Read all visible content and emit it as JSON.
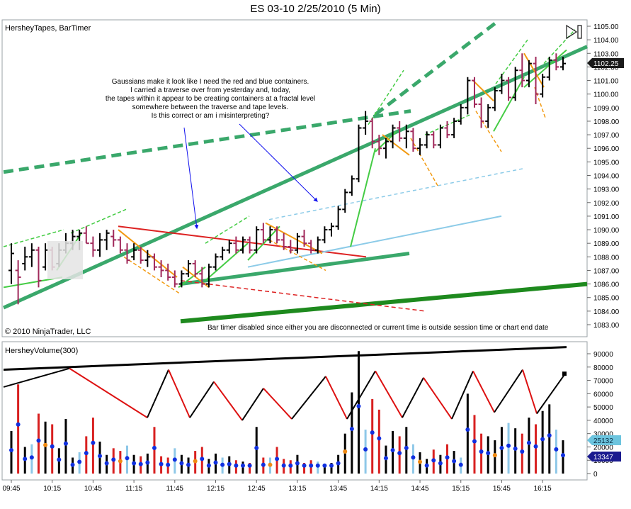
{
  "title": "ES 03-10  2/25/2010 (5 Min)",
  "price_panel": {
    "label": "HersheyTapes, BarTimer",
    "copyright": "© 2010 NinjaTrader, LLC",
    "bartimer_msg": "Bar timer disabled since either you are disconnected or current time is outside session time or chart end date",
    "annotation_lines": [
      "Gaussians make it look like I need the red and blue containers.",
      "I carried a traverse over from yesterday and, today,",
      "the tapes within it appear to be creating containers at a fractal level",
      "somewhere between the traverse and tape levels.",
      "Is this correct or am i misinterpreting?"
    ],
    "y_ticks": [
      "1105.00",
      "1104.00",
      "1103.00",
      "1102.00",
      "1101.00",
      "1100.00",
      "1099.00",
      "1098.00",
      "1097.00",
      "1096.00",
      "1095.00",
      "1094.00",
      "1093.00",
      "1092.00",
      "1091.00",
      "1090.00",
      "1089.00",
      "1088.00",
      "1087.00",
      "1086.00",
      "1085.00",
      "1084.00",
      "1083.00"
    ],
    "last_price": "1102.25"
  },
  "volume_panel": {
    "label": "HersheyVolume(300)",
    "y_ticks": [
      "90000",
      "80000",
      "70000",
      "60000",
      "50000",
      "40000",
      "30000",
      "20000",
      "10000",
      "0"
    ],
    "badge1": "25132",
    "badge2": "13347"
  },
  "x_ticks": [
    "09:45",
    "10:15",
    "10:45",
    "11:15",
    "11:45",
    "12:15",
    "12:45",
    "13:15",
    "13:45",
    "14:15",
    "14:45",
    "15:15",
    "15:45",
    "16:15"
  ],
  "chart_data": {
    "type": "candlestick",
    "title": "ES 03-10  2/25/2010 (5 Min)",
    "interval": "5 Min",
    "ylim": [
      1082.5,
      1105.5
    ],
    "volume_ylim": [
      0,
      95000
    ],
    "x_first": "09:45",
    "x_last": "16:15",
    "last_price": 1102.25,
    "bars": [
      {
        "o": 1087.0,
        "h": 1089.0,
        "l": 1086.0,
        "c": 1088.25
      },
      {
        "o": 1087.0,
        "h": 1087.75,
        "l": 1084.5,
        "c": 1086.5
      },
      {
        "o": 1087.5,
        "h": 1088.75,
        "l": 1087.0,
        "c": 1088.0
      },
      {
        "o": 1088.0,
        "h": 1089.0,
        "l": 1087.25,
        "c": 1088.5
      },
      {
        "o": 1088.5,
        "h": 1088.75,
        "l": 1085.75,
        "c": 1086.25
      },
      {
        "o": 1087.25,
        "h": 1089.0,
        "l": 1087.0,
        "c": 1088.5
      },
      {
        "o": 1088.5,
        "h": 1088.75,
        "l": 1087.0,
        "c": 1087.25
      },
      {
        "o": 1087.5,
        "h": 1089.0,
        "l": 1087.25,
        "c": 1088.5
      },
      {
        "o": 1088.5,
        "h": 1089.75,
        "l": 1088.25,
        "c": 1089.0
      },
      {
        "o": 1089.0,
        "h": 1090.0,
        "l": 1088.5,
        "c": 1089.5
      },
      {
        "o": 1089.5,
        "h": 1090.0,
        "l": 1088.5,
        "c": 1089.75
      },
      {
        "o": 1089.75,
        "h": 1090.25,
        "l": 1089.0,
        "c": 1089.0
      },
      {
        "o": 1089.0,
        "h": 1089.5,
        "l": 1088.0,
        "c": 1088.5
      },
      {
        "o": 1088.5,
        "h": 1089.75,
        "l": 1088.0,
        "c": 1089.25
      },
      {
        "o": 1089.25,
        "h": 1090.0,
        "l": 1088.5,
        "c": 1089.75
      },
      {
        "o": 1089.5,
        "h": 1090.0,
        "l": 1088.75,
        "c": 1089.25
      },
      {
        "o": 1089.25,
        "h": 1089.5,
        "l": 1088.25,
        "c": 1088.5
      },
      {
        "o": 1088.5,
        "h": 1089.0,
        "l": 1087.5,
        "c": 1087.75
      },
      {
        "o": 1088.0,
        "h": 1089.0,
        "l": 1087.75,
        "c": 1088.5
      },
      {
        "o": 1088.5,
        "h": 1088.75,
        "l": 1087.5,
        "c": 1087.75
      },
      {
        "o": 1087.75,
        "h": 1088.5,
        "l": 1087.25,
        "c": 1088.0
      },
      {
        "o": 1088.0,
        "h": 1088.25,
        "l": 1087.0,
        "c": 1087.25
      },
      {
        "o": 1087.25,
        "h": 1087.75,
        "l": 1086.5,
        "c": 1087.0
      },
      {
        "o": 1087.0,
        "h": 1087.5,
        "l": 1086.25,
        "c": 1086.5
      },
      {
        "o": 1086.5,
        "h": 1087.0,
        "l": 1085.75,
        "c": 1086.0
      },
      {
        "o": 1086.0,
        "h": 1087.0,
        "l": 1085.75,
        "c": 1086.75
      },
      {
        "o": 1086.75,
        "h": 1087.75,
        "l": 1086.5,
        "c": 1087.5
      },
      {
        "o": 1087.5,
        "h": 1087.75,
        "l": 1086.5,
        "c": 1086.75
      },
      {
        "o": 1086.75,
        "h": 1087.25,
        "l": 1085.75,
        "c": 1086.0
      },
      {
        "o": 1086.0,
        "h": 1087.5,
        "l": 1085.75,
        "c": 1087.25
      },
      {
        "o": 1087.25,
        "h": 1088.25,
        "l": 1087.0,
        "c": 1088.0
      },
      {
        "o": 1088.0,
        "h": 1088.75,
        "l": 1087.75,
        "c": 1088.5
      },
      {
        "o": 1088.5,
        "h": 1089.25,
        "l": 1088.25,
        "c": 1089.0
      },
      {
        "o": 1089.0,
        "h": 1089.5,
        "l": 1088.25,
        "c": 1088.5
      },
      {
        "o": 1088.5,
        "h": 1089.5,
        "l": 1088.25,
        "c": 1089.25
      },
      {
        "o": 1089.25,
        "h": 1089.5,
        "l": 1088.25,
        "c": 1088.5
      },
      {
        "o": 1088.5,
        "h": 1090.25,
        "l": 1088.25,
        "c": 1090.0
      },
      {
        "o": 1090.0,
        "h": 1090.5,
        "l": 1089.0,
        "c": 1089.25
      },
      {
        "o": 1089.25,
        "h": 1090.25,
        "l": 1089.0,
        "c": 1090.0
      },
      {
        "o": 1090.0,
        "h": 1090.25,
        "l": 1089.0,
        "c": 1089.25
      },
      {
        "o": 1089.25,
        "h": 1089.75,
        "l": 1088.5,
        "c": 1088.75
      },
      {
        "o": 1088.75,
        "h": 1089.25,
        "l": 1088.25,
        "c": 1088.5
      },
      {
        "o": 1088.5,
        "h": 1089.75,
        "l": 1088.25,
        "c": 1089.5
      },
      {
        "o": 1089.5,
        "h": 1090.0,
        "l": 1088.75,
        "c": 1089.0
      },
      {
        "o": 1089.0,
        "h": 1089.25,
        "l": 1088.25,
        "c": 1088.5
      },
      {
        "o": 1088.5,
        "h": 1089.5,
        "l": 1088.25,
        "c": 1089.25
      },
      {
        "o": 1089.25,
        "h": 1090.25,
        "l": 1089.0,
        "c": 1090.0
      },
      {
        "o": 1090.0,
        "h": 1090.5,
        "l": 1089.5,
        "c": 1090.25
      },
      {
        "o": 1090.25,
        "h": 1091.75,
        "l": 1090.0,
        "c": 1091.5
      },
      {
        "o": 1091.5,
        "h": 1093.0,
        "l": 1091.25,
        "c": 1092.75
      },
      {
        "o": 1092.75,
        "h": 1094.0,
        "l": 1092.5,
        "c": 1093.75
      },
      {
        "o": 1093.75,
        "h": 1097.75,
        "l": 1093.5,
        "c": 1097.5
      },
      {
        "o": 1097.5,
        "h": 1098.75,
        "l": 1097.0,
        "c": 1098.0
      },
      {
        "o": 1098.0,
        "h": 1098.25,
        "l": 1096.0,
        "c": 1096.5
      },
      {
        "o": 1096.5,
        "h": 1097.0,
        "l": 1095.5,
        "c": 1096.0
      },
      {
        "o": 1096.0,
        "h": 1096.75,
        "l": 1095.25,
        "c": 1096.5
      },
      {
        "o": 1096.5,
        "h": 1097.75,
        "l": 1096.0,
        "c": 1097.5
      },
      {
        "o": 1097.5,
        "h": 1098.0,
        "l": 1096.5,
        "c": 1096.75
      },
      {
        "o": 1096.75,
        "h": 1097.75,
        "l": 1096.0,
        "c": 1097.25
      },
      {
        "o": 1097.25,
        "h": 1097.5,
        "l": 1095.75,
        "c": 1096.0
      },
      {
        "o": 1096.0,
        "h": 1096.75,
        "l": 1095.5,
        "c": 1096.25
      },
      {
        "o": 1096.25,
        "h": 1097.25,
        "l": 1096.0,
        "c": 1097.0
      },
      {
        "o": 1097.0,
        "h": 1097.25,
        "l": 1096.0,
        "c": 1096.25
      },
      {
        "o": 1096.25,
        "h": 1097.75,
        "l": 1096.0,
        "c": 1097.5
      },
      {
        "o": 1097.5,
        "h": 1098.0,
        "l": 1096.75,
        "c": 1097.0
      },
      {
        "o": 1097.0,
        "h": 1098.25,
        "l": 1096.75,
        "c": 1098.0
      },
      {
        "o": 1098.0,
        "h": 1099.25,
        "l": 1097.75,
        "c": 1099.0
      },
      {
        "o": 1099.0,
        "h": 1101.25,
        "l": 1098.5,
        "c": 1101.0
      },
      {
        "o": 1101.0,
        "h": 1101.25,
        "l": 1099.0,
        "c": 1099.25
      },
      {
        "o": 1099.25,
        "h": 1099.75,
        "l": 1097.5,
        "c": 1098.0
      },
      {
        "o": 1098.0,
        "h": 1099.25,
        "l": 1097.5,
        "c": 1099.0
      },
      {
        "o": 1099.0,
        "h": 1100.5,
        "l": 1098.75,
        "c": 1100.25
      },
      {
        "o": 1100.25,
        "h": 1101.5,
        "l": 1100.0,
        "c": 1101.0
      },
      {
        "o": 1101.0,
        "h": 1101.25,
        "l": 1099.5,
        "c": 1099.75
      },
      {
        "o": 1099.75,
        "h": 1102.0,
        "l": 1099.5,
        "c": 1101.75
      },
      {
        "o": 1101.75,
        "h": 1103.0,
        "l": 1100.5,
        "c": 1101.0
      },
      {
        "o": 1101.0,
        "h": 1102.5,
        "l": 1100.5,
        "c": 1102.25
      },
      {
        "o": 1102.25,
        "h": 1102.75,
        "l": 1099.25,
        "c": 1100.0
      },
      {
        "o": 1100.0,
        "h": 1101.5,
        "l": 1099.75,
        "c": 1101.25
      },
      {
        "o": 1101.25,
        "h": 1102.75,
        "l": 1101.0,
        "c": 1102.5
      },
      {
        "o": 1102.5,
        "h": 1103.0,
        "l": 1101.75,
        "c": 1102.0
      },
      {
        "o": 1102.0,
        "h": 1102.75,
        "l": 1101.75,
        "c": 1102.25
      }
    ],
    "volume": [
      32000,
      67000,
      20000,
      22000,
      45000,
      39000,
      37000,
      19000,
      41000,
      12000,
      16000,
      28000,
      42000,
      24000,
      14000,
      19000,
      17000,
      21000,
      14000,
      13000,
      15000,
      35000,
      13000,
      12000,
      19000,
      14000,
      12000,
      17000,
      20000,
      11000,
      15000,
      12000,
      13000,
      10000,
      9000,
      8000,
      35000,
      12000,
      12000,
      20000,
      11000,
      10000,
      14000,
      8000,
      10000,
      9000,
      7000,
      8000,
      14000,
      30000,
      61000,
      92000,
      33000,
      56000,
      48000,
      21000,
      32000,
      28000,
      35000,
      22000,
      16000,
      11000,
      18000,
      14000,
      22000,
      17000,
      12000,
      60000,
      44000,
      30000,
      28000,
      25000,
      35000,
      38000,
      34000,
      30000,
      42000,
      37000,
      47000,
      52000,
      33000,
      25000
    ]
  }
}
